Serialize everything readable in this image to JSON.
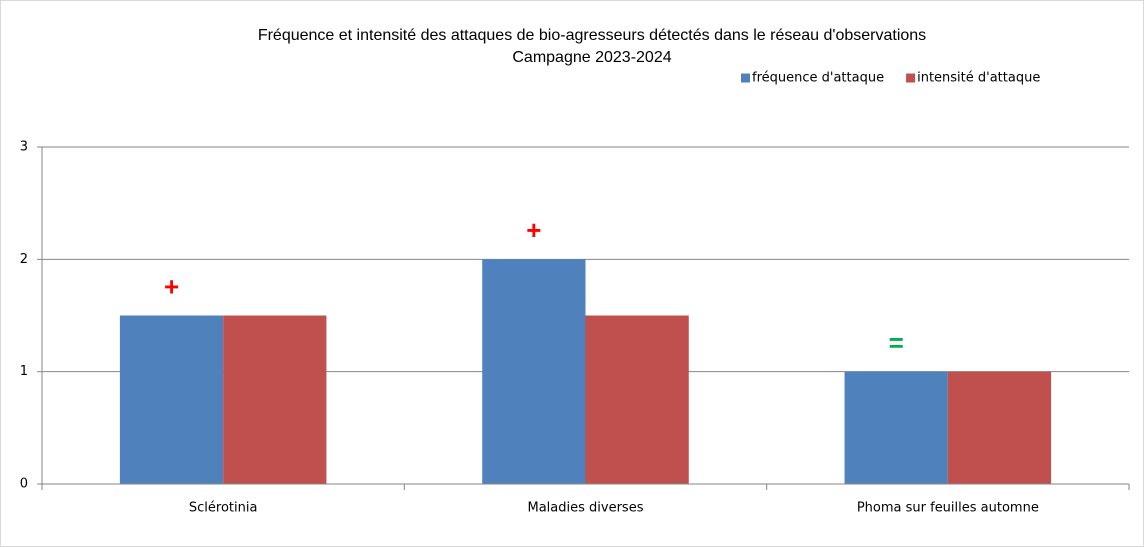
{
  "chart_data": {
    "type": "bar",
    "title": "Fréquence et intensité des attaques de bio-agresseurs détectés dans le réseau d'observations",
    "subtitle": "Campagne 2023-2024",
    "categories": [
      "Sclérotinia",
      "Maladies diverses",
      "Phoma sur feuilles automne"
    ],
    "series": [
      {
        "name": "fréquence d'attaque",
        "color": "#4f81bd",
        "values": [
          1.5,
          2,
          1
        ]
      },
      {
        "name": "intensité d'attaque",
        "color": "#c0504d",
        "values": [
          1.5,
          1.5,
          1
        ]
      }
    ],
    "annotations": [
      "+",
      "+",
      "="
    ],
    "annotation_colors": [
      "#ff0000",
      "#ff0000",
      "#00b050"
    ],
    "ylim": [
      0,
      3
    ],
    "yticks": [
      0,
      1,
      2,
      3
    ],
    "grid": true,
    "legend": "top-right"
  }
}
